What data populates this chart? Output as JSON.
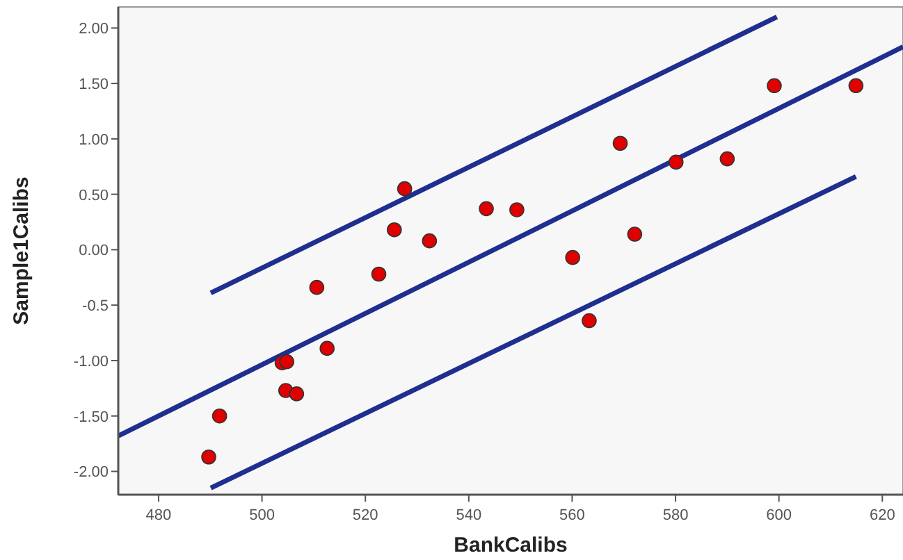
{
  "chart_data": {
    "type": "scatter",
    "xlabel": "BankCalibs",
    "ylabel": "Sample1Calibs",
    "xlim": [
      472.2,
      624
    ],
    "ylim": [
      -2.21,
      2.19
    ],
    "xticks": [
      480,
      500,
      520,
      540,
      560,
      580,
      600,
      620
    ],
    "yticks": [
      {
        "value": -2,
        "label": "-2.00"
      },
      {
        "value": -1.5,
        "label": "-1.50"
      },
      {
        "value": -1,
        "label": "-1.00"
      },
      -0.5,
      {
        "value": 0,
        "label": "0.00"
      },
      {
        "value": 0.5,
        "label": "0.50"
      },
      {
        "value": 1,
        "label": "1.00"
      },
      {
        "value": 1.5,
        "label": "1.50"
      },
      {
        "value": 2,
        "label": "2.00"
      }
    ],
    "grid": false,
    "series": [
      {
        "color": "#e00000",
        "marker": "circle",
        "x": [
          489.7,
          491.8,
          503.9,
          504.8,
          504.6,
          506.7,
          512.6,
          510.6,
          522.6,
          525.6,
          527.6,
          532.4,
          543.4,
          549.3,
          569.3,
          560.1,
          563.3,
          572.1,
          580.1,
          590.0,
          599.1,
          614.9
        ],
        "values": [
          -1.87,
          -1.5,
          -1.02,
          -1.01,
          -1.27,
          -1.3,
          -0.89,
          -0.34,
          -0.22,
          0.18,
          0.55,
          0.08,
          0.37,
          0.36,
          0.96,
          -0.07,
          -0.64,
          0.14,
          0.79,
          0.82,
          1.48,
          1.48
        ]
      },
      {
        "type": "line",
        "color": "#1f2f8f",
        "marker": "none",
        "line_style": "solid",
        "x": [
          472.2,
          624
        ],
        "values": [
          -1.68,
          1.83
        ]
      },
      {
        "type": "line",
        "color": "#1f2f8f",
        "marker": "none",
        "line_style": "solid",
        "x": [
          490.1,
          599.6
        ],
        "values": [
          -0.39,
          2.1
        ]
      },
      {
        "type": "line",
        "color": "#1f2f8f",
        "marker": "none",
        "line_style": "solid",
        "x": [
          490.1,
          614.9
        ],
        "values": [
          -2.15,
          0.66
        ]
      }
    ]
  }
}
